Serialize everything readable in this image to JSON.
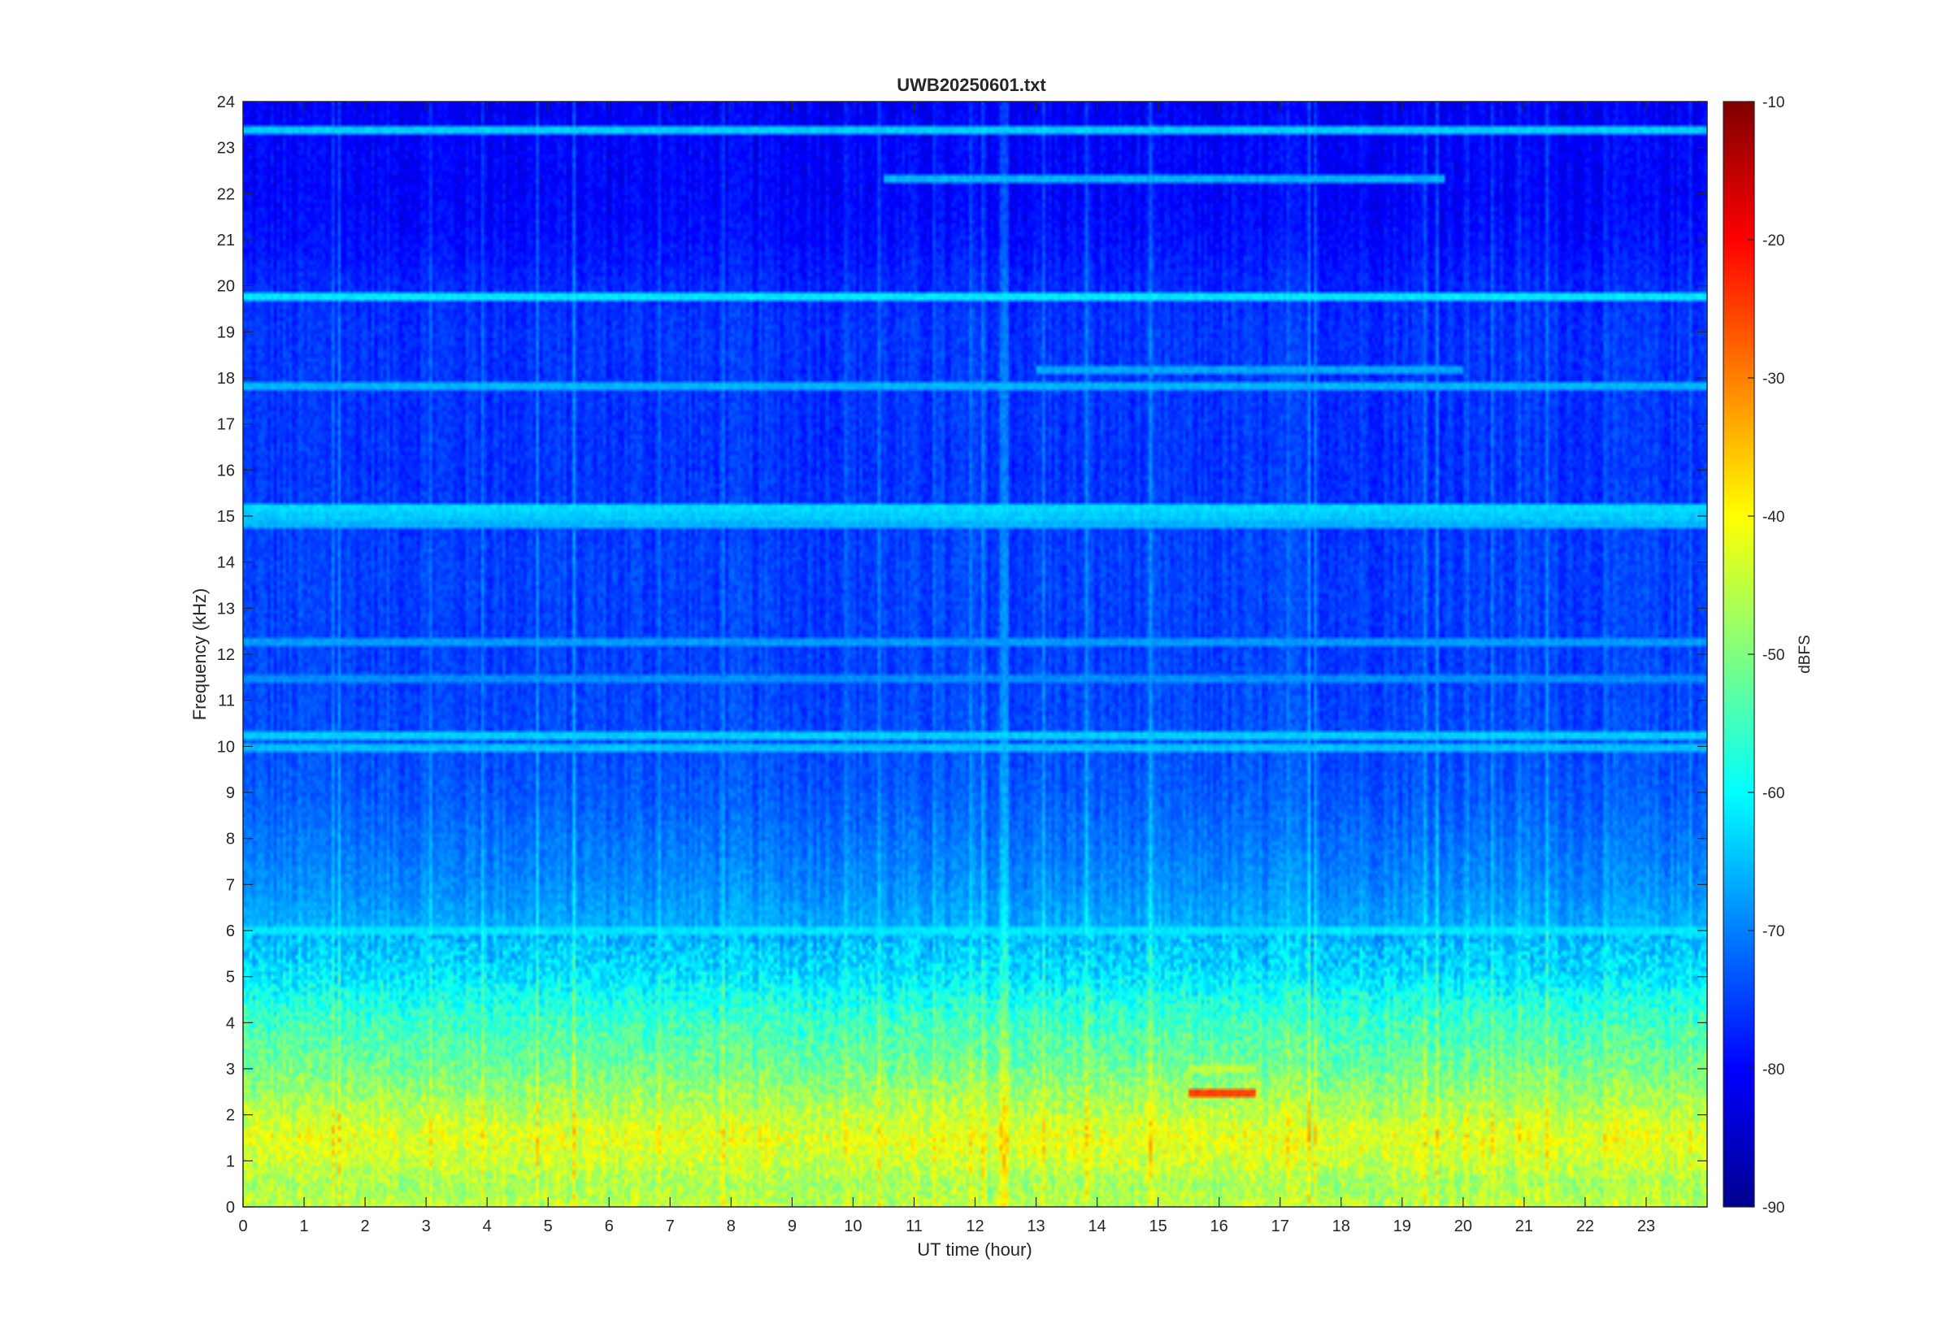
{
  "chart_data": {
    "type": "heatmap",
    "title": "UWB20250601.txt",
    "xlabel": "UT time (hour)",
    "ylabel": "Frequency (kHz)",
    "xlim": [
      0,
      24
    ],
    "ylim": [
      0,
      24
    ],
    "x_ticks": [
      0,
      1,
      2,
      3,
      4,
      5,
      6,
      7,
      8,
      9,
      10,
      11,
      12,
      13,
      14,
      15,
      16,
      17,
      18,
      19,
      20,
      21,
      22,
      23
    ],
    "y_ticks": [
      0,
      1,
      2,
      3,
      4,
      5,
      6,
      7,
      8,
      9,
      10,
      11,
      12,
      13,
      14,
      15,
      16,
      17,
      18,
      19,
      20,
      21,
      22,
      23,
      24
    ],
    "colorbar": {
      "label": "dBFS",
      "range": [
        -90,
        -10
      ],
      "ticks": [
        -90,
        -80,
        -70,
        -60,
        -50,
        -40,
        -30,
        -20,
        -10
      ],
      "colormap": "jet"
    },
    "frequency_profile_db": [
      {
        "f": 0.0,
        "db": -45
      },
      {
        "f": 0.5,
        "db": -47
      },
      {
        "f": 1.0,
        "db": -44
      },
      {
        "f": 1.5,
        "db": -42
      },
      {
        "f": 2.0,
        "db": -45
      },
      {
        "f": 2.5,
        "db": -48
      },
      {
        "f": 3.0,
        "db": -51
      },
      {
        "f": 3.5,
        "db": -53
      },
      {
        "f": 4.0,
        "db": -55
      },
      {
        "f": 4.5,
        "db": -58
      },
      {
        "f": 5.0,
        "db": -62
      },
      {
        "f": 5.5,
        "db": -64
      },
      {
        "f": 6.0,
        "db": -66
      },
      {
        "f": 7.0,
        "db": -69
      },
      {
        "f": 8.0,
        "db": -71
      },
      {
        "f": 9.0,
        "db": -73
      },
      {
        "f": 10.0,
        "db": -74
      },
      {
        "f": 12.0,
        "db": -75
      },
      {
        "f": 14.0,
        "db": -75
      },
      {
        "f": 16.0,
        "db": -76
      },
      {
        "f": 18.0,
        "db": -76
      },
      {
        "f": 19.0,
        "db": -76
      },
      {
        "f": 20.0,
        "db": -77
      },
      {
        "f": 21.0,
        "db": -79
      },
      {
        "f": 22.0,
        "db": -80
      },
      {
        "f": 23.0,
        "db": -80
      },
      {
        "f": 24.0,
        "db": -81
      }
    ],
    "persistent_lines": [
      {
        "freq_khz": 19.8,
        "db": -62,
        "t_start": 0,
        "t_end": 24
      },
      {
        "freq_khz": 23.4,
        "db": -64,
        "t_start": 0,
        "t_end": 24
      },
      {
        "freq_khz": 15.2,
        "db": -63,
        "t_start": 0,
        "t_end": 24
      },
      {
        "freq_khz": 15.0,
        "db": -64,
        "t_start": 0,
        "t_end": 24
      },
      {
        "freq_khz": 14.8,
        "db": -66,
        "t_start": 0,
        "t_end": 24
      },
      {
        "freq_khz": 10.2,
        "db": -64,
        "t_start": 0,
        "t_end": 24
      },
      {
        "freq_khz": 10.0,
        "db": -65,
        "t_start": 0,
        "t_end": 24
      },
      {
        "freq_khz": 6.0,
        "db": -62,
        "t_start": 0,
        "t_end": 24
      },
      {
        "freq_khz": 17.8,
        "db": -66,
        "t_start": 0,
        "t_end": 24
      },
      {
        "freq_khz": 22.3,
        "db": -66,
        "t_start": 10.5,
        "t_end": 19.7
      },
      {
        "freq_khz": 18.2,
        "db": -67,
        "t_start": 13,
        "t_end": 20
      },
      {
        "freq_khz": 12.3,
        "db": -68,
        "t_start": 0,
        "t_end": 24
      },
      {
        "freq_khz": 11.5,
        "db": -69,
        "t_start": 0,
        "t_end": 24
      },
      {
        "freq_khz": 2.5,
        "db": -25,
        "t_start": 15.5,
        "t_end": 16.6
      },
      {
        "freq_khz": 3.0,
        "db": -45,
        "t_start": 15.5,
        "t_end": 16.6
      }
    ],
    "grid": false,
    "colorbar_position": "right"
  }
}
